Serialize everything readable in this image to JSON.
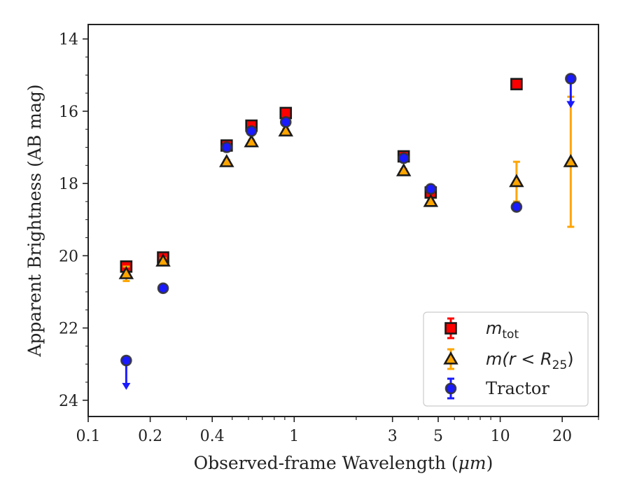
{
  "chart_data": {
    "type": "scatter",
    "xlabel_pre": "Observed-frame Wavelength (",
    "xlabel_unit": "μm",
    "xlabel_post": ")",
    "ylabel": "Apparent Brightness (AB mag)",
    "x_scale": "log",
    "xlim": [
      0.1,
      30
    ],
    "ylim": [
      24.45,
      13.6
    ],
    "y_inverted": true,
    "x_ticks": [
      {
        "value": 0.1,
        "label": "0.1"
      },
      {
        "value": 0.2,
        "label": "0.2"
      },
      {
        "value": 0.4,
        "label": "0.4"
      },
      {
        "value": 1,
        "label": "1"
      },
      {
        "value": 3,
        "label": "3"
      },
      {
        "value": 5,
        "label": "5"
      },
      {
        "value": 10,
        "label": "10"
      },
      {
        "value": 20,
        "label": "20"
      }
    ],
    "x_minor_ticks": [
      0.3,
      0.5,
      0.6,
      0.7,
      0.8,
      0.9,
      2,
      4,
      6,
      7,
      8,
      9,
      30
    ],
    "y_ticks": [
      14,
      16,
      18,
      20,
      22,
      24
    ],
    "legend_position": "lower-right",
    "series": [
      {
        "name_math": "m",
        "name_sub": "tot",
        "marker": "square",
        "color": "#ff0000",
        "edge": "#1a1a1a",
        "points": [
          {
            "x": 0.153,
            "y": 20.3,
            "err": 0.08
          },
          {
            "x": 0.231,
            "y": 20.05,
            "err": 0.08
          },
          {
            "x": 0.47,
            "y": 16.95,
            "err": 0.05
          },
          {
            "x": 0.62,
            "y": 16.4,
            "err": 0.05
          },
          {
            "x": 0.91,
            "y": 16.05,
            "err": 0.05
          },
          {
            "x": 3.4,
            "y": 17.25,
            "err": 0.05
          },
          {
            "x": 4.6,
            "y": 18.25,
            "err": 0.05
          },
          {
            "x": 12.0,
            "y": 15.25,
            "err": 0.05
          }
        ]
      },
      {
        "name_text": "m(r < R",
        "name_sub": "25",
        "name_tail": ")",
        "marker": "triangle",
        "color": "#ffa500",
        "edge": "#1a1a1a",
        "points": [
          {
            "x": 0.153,
            "y": 20.5,
            "err": 0.2
          },
          {
            "x": 0.231,
            "y": 20.15,
            "err": 0.08
          },
          {
            "x": 0.47,
            "y": 17.4,
            "err": 0.05
          },
          {
            "x": 0.62,
            "y": 16.85,
            "err": 0.05
          },
          {
            "x": 0.91,
            "y": 16.55,
            "err": 0.05
          },
          {
            "x": 3.4,
            "y": 17.65,
            "err": 0.05
          },
          {
            "x": 4.6,
            "y": 18.5,
            "err": 0.05
          },
          {
            "x": 12.0,
            "y": 17.95,
            "err": 0.55
          },
          {
            "x": 22.0,
            "y": 17.4,
            "err": 1.8
          }
        ]
      },
      {
        "name": "Tractor",
        "marker": "circle",
        "color": "#1a1aff",
        "edge": "#333333",
        "points": [
          {
            "x": 0.153,
            "y": 22.9,
            "upper_limit": true
          },
          {
            "x": 0.231,
            "y": 20.9,
            "err": 0.05
          },
          {
            "x": 0.47,
            "y": 17.0,
            "err": 0.05
          },
          {
            "x": 0.62,
            "y": 16.55,
            "err": 0.05
          },
          {
            "x": 0.91,
            "y": 16.3,
            "err": 0.05
          },
          {
            "x": 3.4,
            "y": 17.3,
            "err": 0.05
          },
          {
            "x": 4.6,
            "y": 18.15,
            "err": 0.05
          },
          {
            "x": 12.0,
            "y": 18.65,
            "err": 0.05
          },
          {
            "x": 22.0,
            "y": 15.1,
            "upper_limit": true
          }
        ]
      }
    ]
  }
}
